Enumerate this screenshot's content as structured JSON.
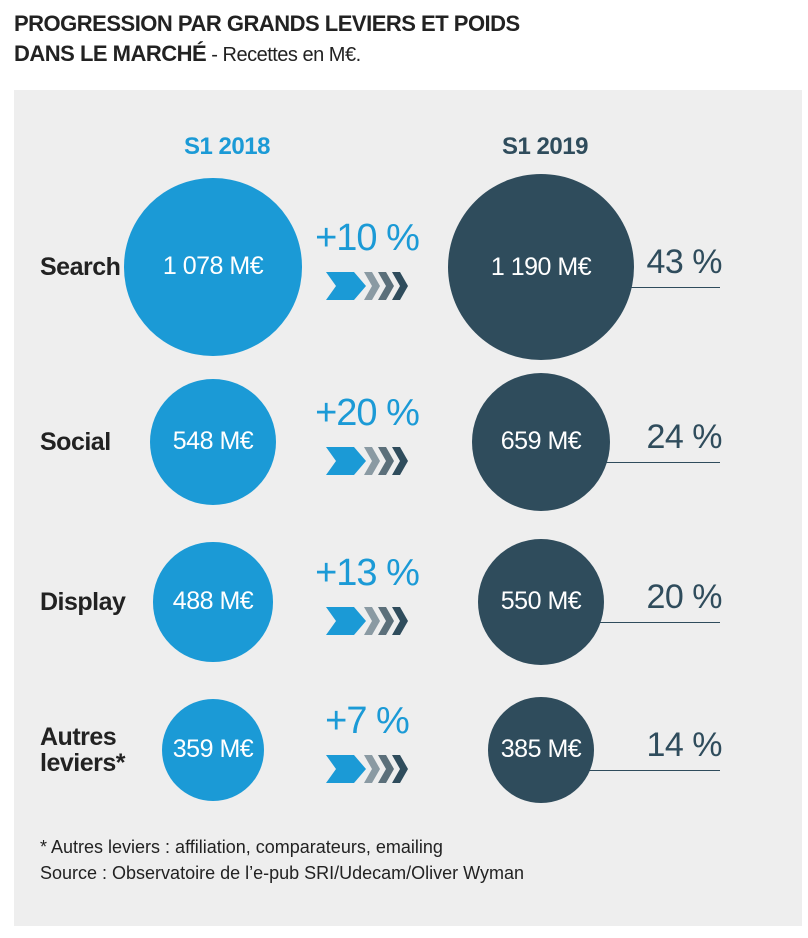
{
  "title": {
    "line1": "PROGRESSION PAR GRANDS LEVIERS ET POIDS",
    "line2_bold": "DANS LE MARCHÉ",
    "line2_rest": " - Recettes en M€."
  },
  "chart_data": {
    "type": "table",
    "columns": [
      "S1 2018",
      "S1 2019"
    ],
    "rows": [
      {
        "label": "Search",
        "value_2018": 1078,
        "value_2019": 1190,
        "text_2018": "1 078 M€",
        "text_2019": "1 190 M€",
        "growth": "+10 %",
        "share": "43 %"
      },
      {
        "label": "Social",
        "value_2018": 548,
        "value_2019": 659,
        "text_2018": "548 M€",
        "text_2019": "659 M€",
        "growth": "+20 %",
        "share": "24 %"
      },
      {
        "label": "Display",
        "value_2018": 488,
        "value_2019": 550,
        "text_2018": "488 M€",
        "text_2019": "550 M€",
        "growth": "+13 %",
        "share": "20 %"
      },
      {
        "label": "Autres leviers*",
        "value_2018": 359,
        "value_2019": 385,
        "text_2018": "359 M€",
        "text_2019": "385 M€",
        "growth": "+7 %",
        "share": "14 %"
      }
    ],
    "colors": {
      "s2018": "#1b9ad6",
      "s2019": "#2f4c5c"
    }
  },
  "footnotes": {
    "note": "* Autres leviers : affiliation, comparateurs, emailing",
    "source": "Source : Observatoire de l’e-pub SRI/Udecam/Oliver Wyman"
  }
}
